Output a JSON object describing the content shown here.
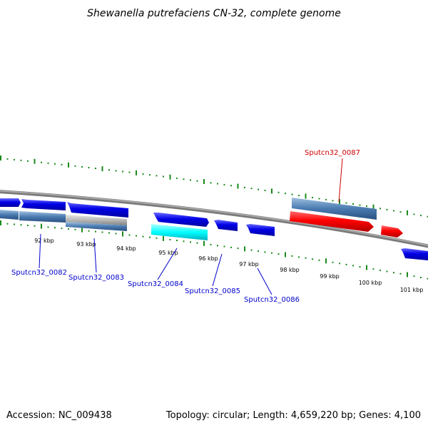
{
  "title": "Shewanella putrefaciens CN-32, complete genome",
  "footer": {
    "accession": "Accession: NC_009438",
    "summary": "Topology: circular; Length: 4,659,220 bp; Genes: 4,100"
  },
  "axis_labels": [
    "92 kbp",
    "93 kbp",
    "94 kbp",
    "95 kbp",
    "96 kbp",
    "97 kbp",
    "98 kbp",
    "99 kbp",
    "100 kbp",
    "101 kbp"
  ],
  "gene_labels": [
    {
      "text": "Sputcn32_0082",
      "color": "#0000cc"
    },
    {
      "text": "Sputcn32_0083",
      "color": "#0000cc"
    },
    {
      "text": "Sputcn32_0084",
      "color": "#0000cc"
    },
    {
      "text": "Sputcn32_0085",
      "color": "#0000cc"
    },
    {
      "text": "Sputcn32_0086",
      "color": "#0000cc"
    },
    {
      "text": "Sputcn32_0087",
      "color": "#cc0000"
    }
  ],
  "colors": {
    "backbone": "#808080",
    "tick": "#1a8a1a",
    "cds": "#0000e6",
    "highlight_red": "#ff0000",
    "blast_blue": "#4a7ab0",
    "blast_cyan": "#00ffff",
    "blast_grey": "#b0b0b0"
  }
}
